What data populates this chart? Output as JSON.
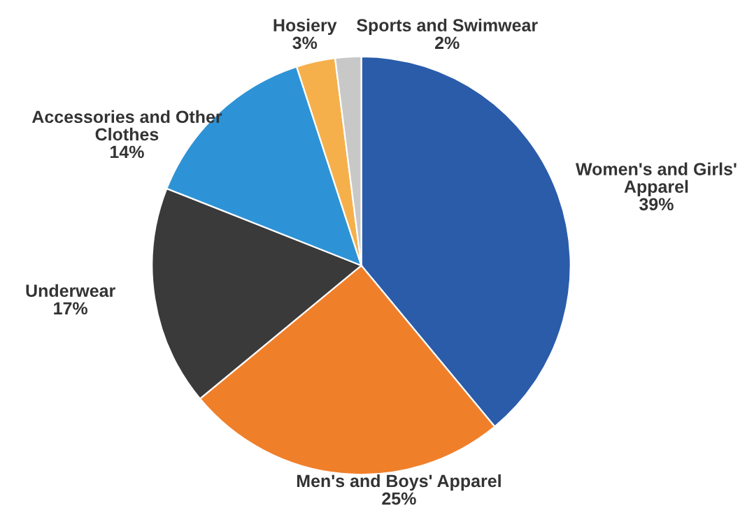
{
  "chart_data": {
    "type": "pie",
    "categories": [
      "Women's and Girls'\nApparel",
      "Men's and Boys' Apparel",
      "Underwear",
      "Accessories and Other\nClothes",
      "Hosiery",
      "Sports and Swimwear"
    ],
    "values": [
      39,
      25,
      17,
      14,
      3,
      2
    ],
    "value_labels": [
      "39%",
      "25%",
      "17%",
      "14%",
      "3%",
      "2%"
    ],
    "colors": [
      "#2a5caa",
      "#f07f2a",
      "#3a3a3a",
      "#2e93d6",
      "#f5b04c",
      "#c8c8c8"
    ]
  }
}
